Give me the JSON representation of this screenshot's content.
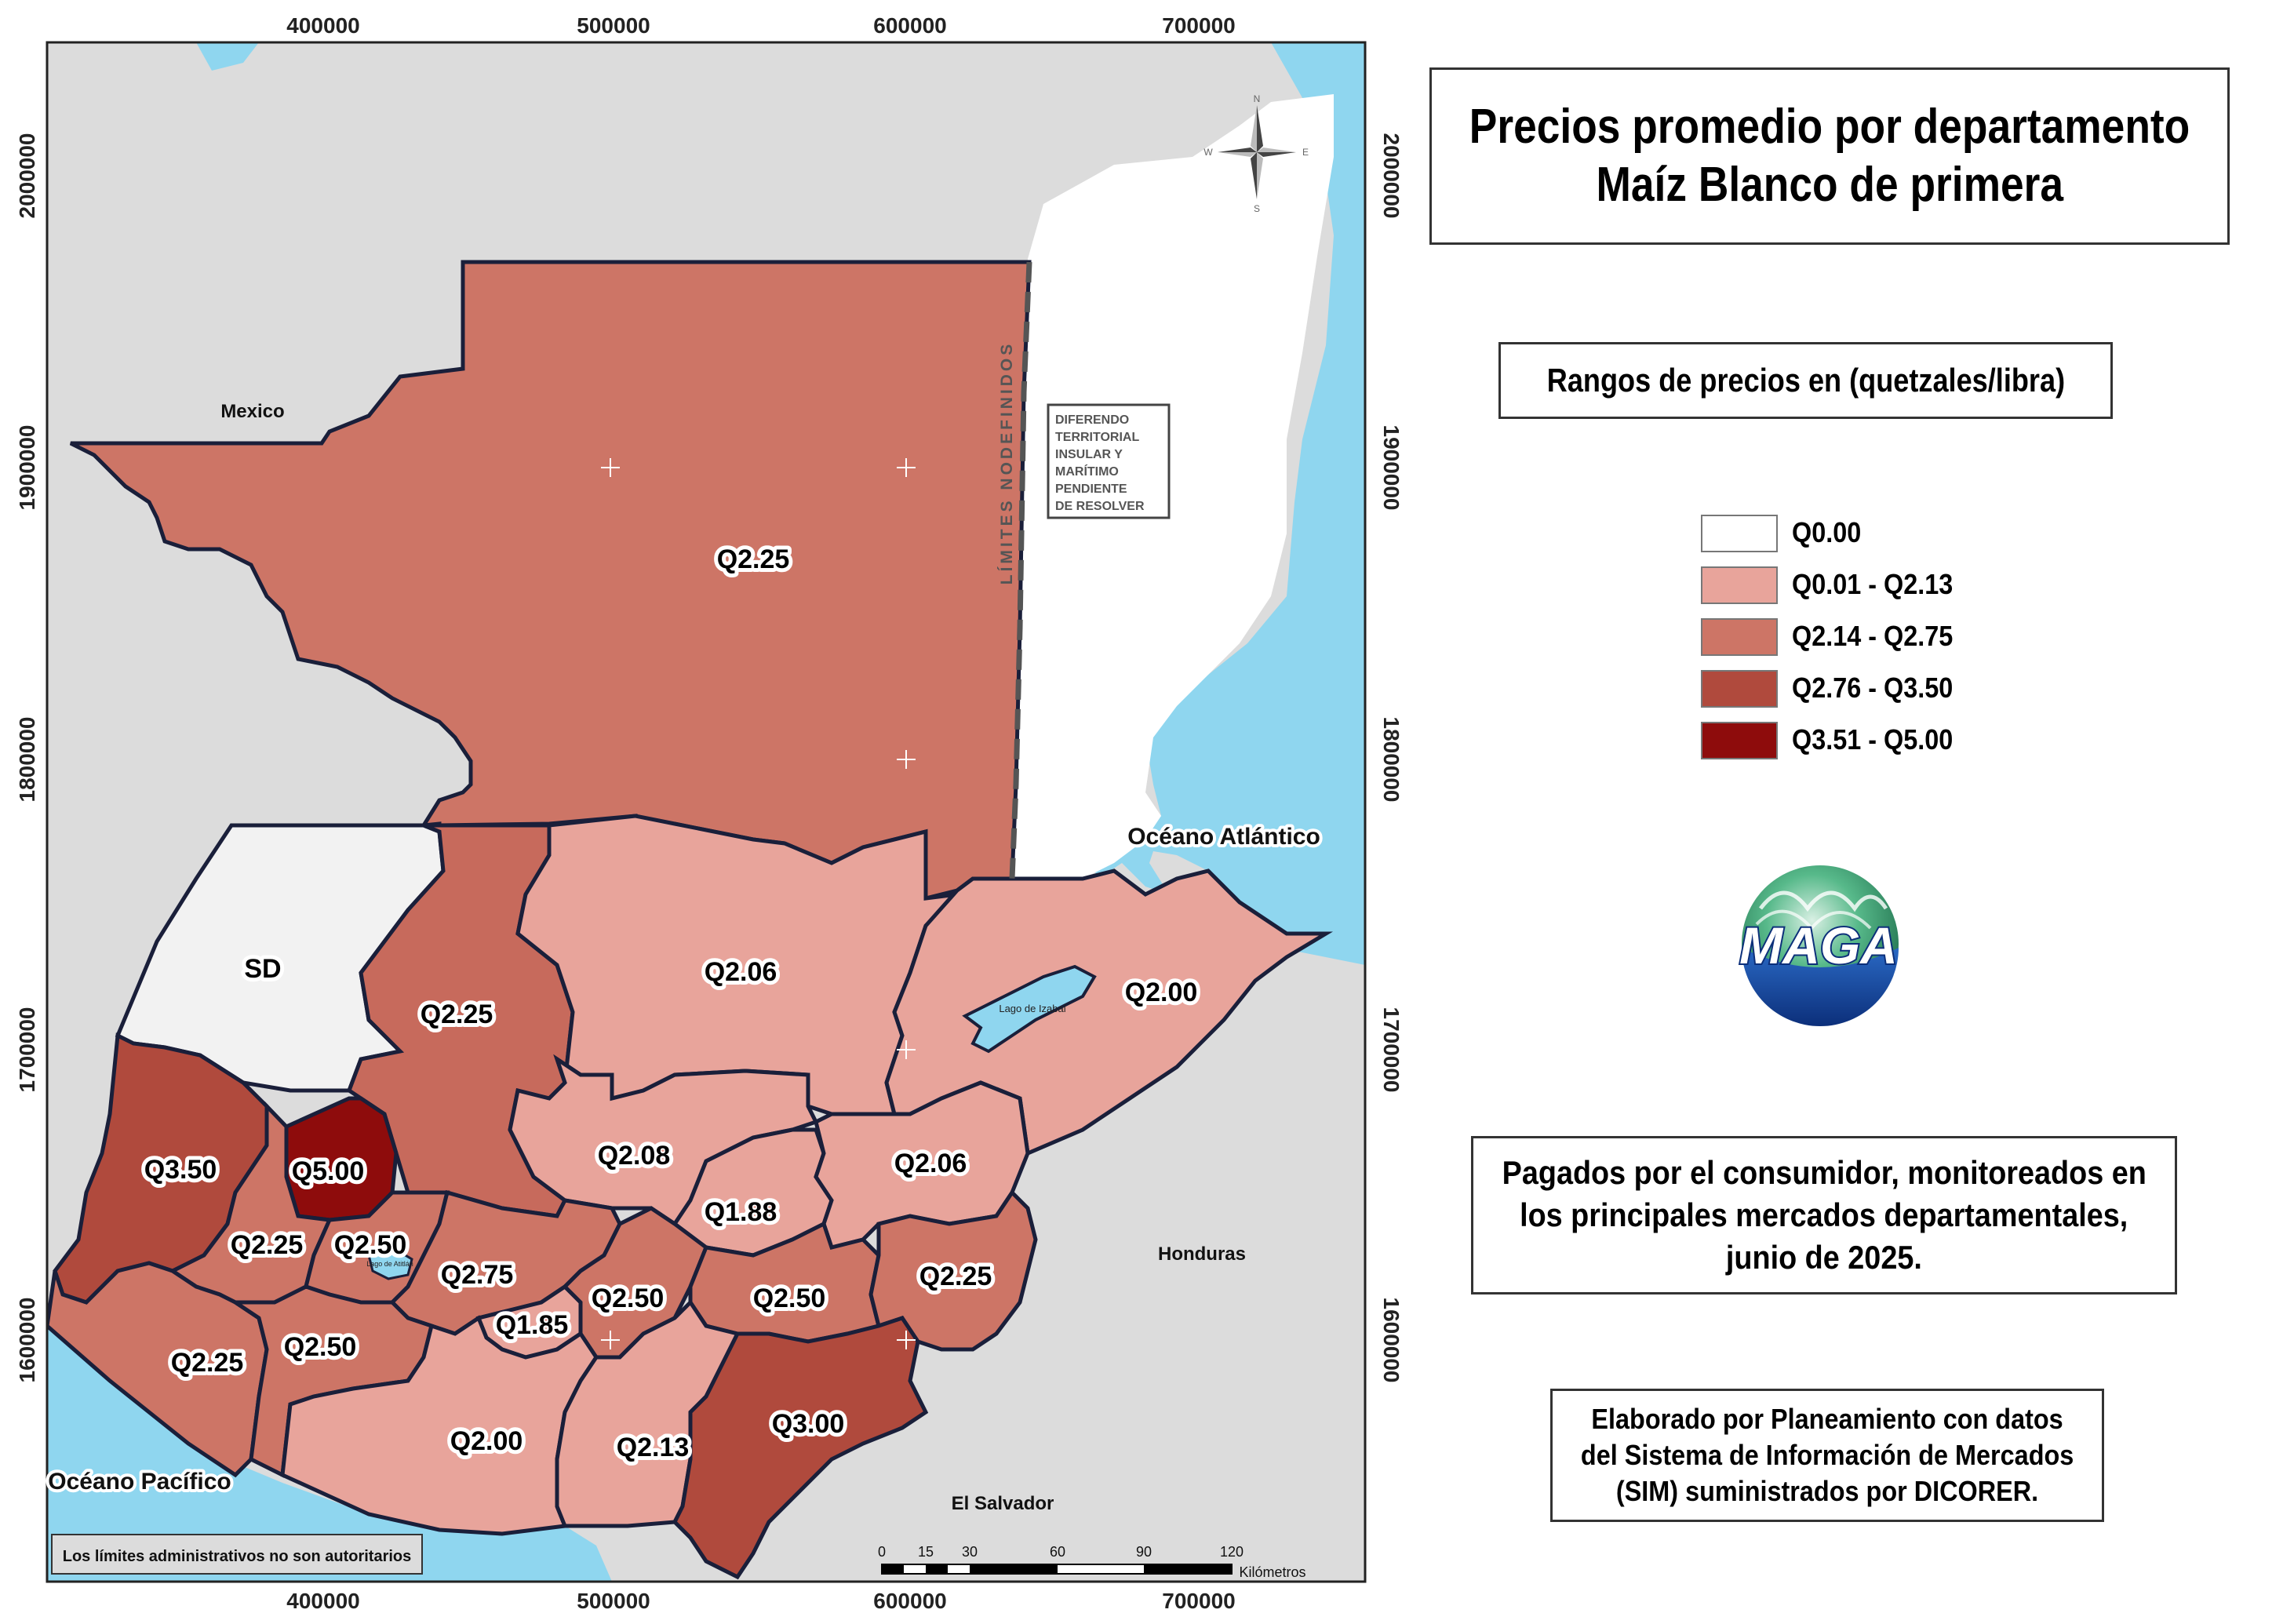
{
  "title": {
    "line1": "Precios promedio por departamento",
    "line2": "Maíz Blanco de primera"
  },
  "legend": {
    "heading": "Rangos de precios en (quetzales/libra)",
    "items": [
      {
        "label": "Q0.00",
        "color": "#ffffff"
      },
      {
        "label": "Q0.01 - Q2.13",
        "color": "#e8a49b"
      },
      {
        "label": "Q2.14 - Q2.75",
        "color": "#cd7566"
      },
      {
        "label": "Q2.76 - Q3.50",
        "color": "#b04a3d"
      },
      {
        "label": "Q3.51 - Q5.00",
        "color": "#8e0c0c"
      }
    ]
  },
  "note": {
    "line1": "Pagados por el consumidor, monitoreados en",
    "line2": "los principales mercados departamentales,",
    "line3": "junio de 2025."
  },
  "credit": {
    "line1": "Elaborado por Planeamiento con datos",
    "line2": "del Sistema de Información de Mercados",
    "line3": "(SIM) suministrados por DICORER."
  },
  "logo_text": "MAGA",
  "map": {
    "axis_x_ticks": [
      "400000",
      "500000",
      "600000",
      "700000"
    ],
    "axis_y_ticks": [
      "2000000",
      "1900000",
      "1800000",
      "1700000",
      "1600000"
    ],
    "place_labels": {
      "mexico": "Mexico",
      "honduras": "Honduras",
      "el_salvador": "El Salvador",
      "oceano_atlantico": "Océano Atlántico",
      "oceano_pacifico": "Océano Pacífico",
      "lago_izabal": "Lago de Izabal",
      "lago_atitlan": "Lago de Atitlán"
    },
    "boundary_note": "LÍMITES NODEFINIDOS",
    "dispute_note": [
      "DIFERENDO",
      "TERRITORIAL",
      "INSULAR Y",
      "MARÍTIMO",
      "PENDIENTE",
      "DE RESOLVER"
    ],
    "disclaimer": "Los límites administrativos no son autoritarios",
    "compass": {
      "n": "N",
      "s": "S",
      "e": "E",
      "w": "W"
    },
    "scale_bar": {
      "ticks": [
        "0",
        "15",
        "30",
        "60",
        "90",
        "120"
      ],
      "unit": "Kilómetros"
    },
    "price_labels": [
      {
        "id": "peten",
        "text": "Q2.25"
      },
      {
        "id": "huehuetenango",
        "text": "SD"
      },
      {
        "id": "quiche",
        "text": "Q2.25"
      },
      {
        "id": "alta-verapaz",
        "text": "Q2.06"
      },
      {
        "id": "izabal",
        "text": "Q2.00"
      },
      {
        "id": "san-marcos",
        "text": "Q3.50"
      },
      {
        "id": "totonicapan",
        "text": "Q5.00"
      },
      {
        "id": "quetzaltenango",
        "text": "Q2.25"
      },
      {
        "id": "solola",
        "text": "Q2.50"
      },
      {
        "id": "baja-verapaz",
        "text": "Q2.08"
      },
      {
        "id": "el-progreso",
        "text": "Q1.88"
      },
      {
        "id": "zacapa",
        "text": "Q2.06"
      },
      {
        "id": "chimaltenango",
        "text": "Q2.75"
      },
      {
        "id": "sacatepequez",
        "text": "Q1.85"
      },
      {
        "id": "guatemala",
        "text": "Q2.50"
      },
      {
        "id": "jalapa",
        "text": "Q2.50"
      },
      {
        "id": "chiquimula",
        "text": "Q2.25"
      },
      {
        "id": "retalhuleu",
        "text": "Q2.25"
      },
      {
        "id": "suchitepequez",
        "text": "Q2.50"
      },
      {
        "id": "escuintla",
        "text": "Q2.00"
      },
      {
        "id": "santa-rosa",
        "text": "Q2.13"
      },
      {
        "id": "jutiapa",
        "text": "Q3.00"
      }
    ]
  }
}
